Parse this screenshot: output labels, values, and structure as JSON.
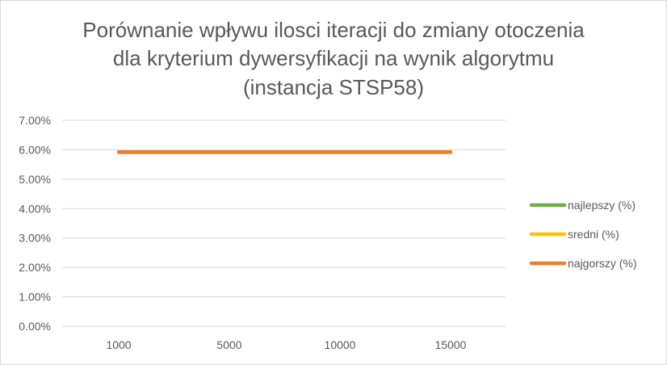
{
  "chart_data": {
    "type": "line",
    "title_lines": [
      "Porównanie wpływu ilosci iteracji do zmiany otoczenia",
      "dla kryterium dywersyfikacji na wynik algorytmu",
      "(instancja STSP58)"
    ],
    "categories": [
      "1000",
      "5000",
      "10000",
      "15000"
    ],
    "y_ticks": [
      "0.00%",
      "1.00%",
      "2.00%",
      "3.00%",
      "4.00%",
      "5.00%",
      "6.00%",
      "7.00%"
    ],
    "ylim": [
      0,
      0.07
    ],
    "grid": true,
    "legend_position": "right",
    "series": [
      {
        "name": "najlepszy (%)",
        "color": "#70ad47",
        "values": [
          0.0592,
          0.0592,
          0.0592,
          0.0592
        ]
      },
      {
        "name": "sredni (%)",
        "color": "#ffc000",
        "values": [
          0.0592,
          0.0592,
          0.0592,
          0.0592
        ]
      },
      {
        "name": "najgorszy (%)",
        "color": "#ed7d31",
        "values": [
          0.0592,
          0.0592,
          0.0592,
          0.0592
        ]
      }
    ]
  }
}
